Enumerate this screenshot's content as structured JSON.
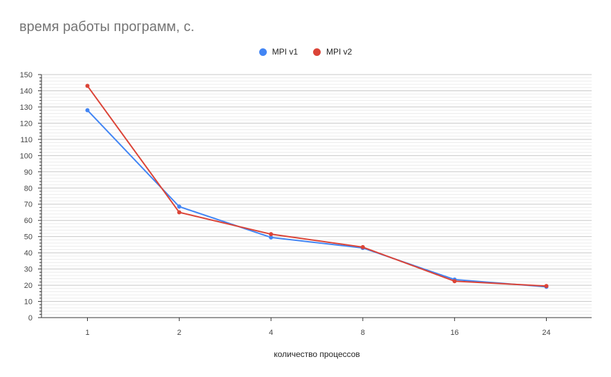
{
  "chart_data": {
    "type": "line",
    "title": "время работы программ, с.",
    "xlabel": "количество процессов",
    "ylabel": "",
    "categories": [
      "1",
      "2",
      "4",
      "8",
      "16",
      "24"
    ],
    "ylim": [
      0,
      150
    ],
    "yticks": [
      0,
      10,
      20,
      30,
      40,
      50,
      60,
      70,
      80,
      90,
      100,
      110,
      120,
      130,
      140,
      150
    ],
    "grid": true,
    "legend_position": "top-center",
    "series": [
      {
        "name": "MPI v1",
        "color": "#4285f4",
        "values": [
          128,
          68.5,
          49.5,
          43,
          23.5,
          19
        ]
      },
      {
        "name": "MPI v2",
        "color": "#db4437",
        "values": [
          143,
          65,
          51.5,
          43.5,
          22.5,
          19.5
        ]
      }
    ]
  }
}
